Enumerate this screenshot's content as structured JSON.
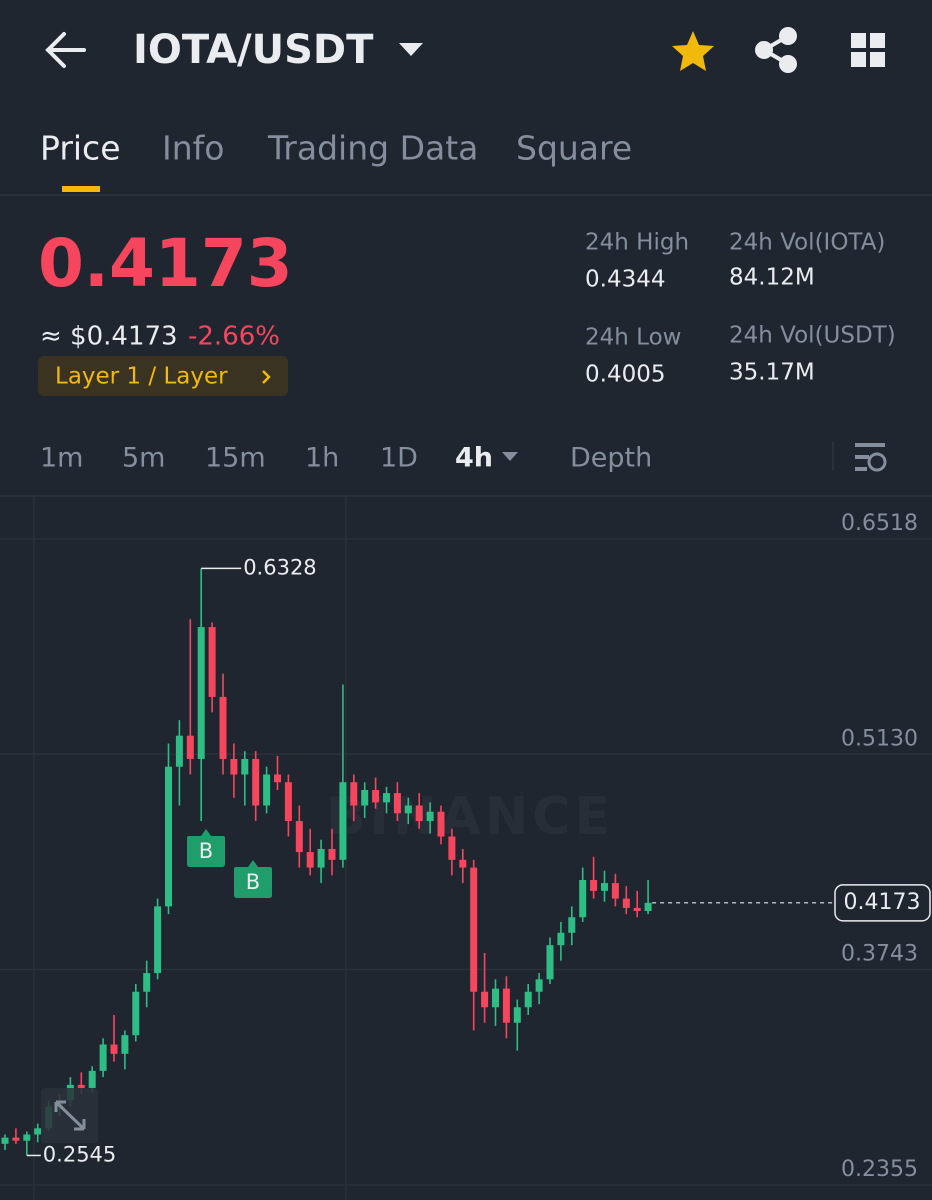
{
  "header": {
    "pair": "IOTA/USDT"
  },
  "tabs": [
    "Price",
    "Info",
    "Trading Data",
    "Square"
  ],
  "ticker": {
    "price": "0.4173",
    "approx": "≈ $0.4173",
    "change": "-2.66%",
    "tag": "Layer 1 / Layer"
  },
  "stats": [
    {
      "label": "24h High",
      "value": "0.4344"
    },
    {
      "label": "24h Vol(IOTA)",
      "value": "84.12M"
    },
    {
      "label": "24h Low",
      "value": "0.4005"
    },
    {
      "label": "24h Vol(USDT)",
      "value": "35.17M"
    }
  ],
  "intervals": [
    "1m",
    "5m",
    "15m",
    "1h",
    "1D",
    "4h"
  ],
  "depth": "Depth",
  "chart_data": {
    "type": "candlestick",
    "watermark": "BINANCE",
    "up_color": "#2ebd85",
    "down_color": "#f6465d",
    "grid": true,
    "ylim": [
      0.2258,
      0.6788
    ],
    "yticks": [
      0.2355,
      0.3743,
      {
        "value": 0.513,
        "label": "0.5130"
      },
      0.6518
    ],
    "high_label": 0.6328,
    "low_label": 0.2545,
    "last_price": 0.4173,
    "markers": [
      "B",
      "B"
    ],
    "open": [
      0.262,
      0.266,
      0.264,
      0.268,
      0.272,
      0.286,
      0.29,
      0.3,
      0.298,
      0.309,
      0.326,
      0.32,
      0.332,
      0.36,
      0.372,
      0.415,
      0.505,
      0.525,
      0.51,
      0.595,
      0.55,
      0.51,
      0.5,
      0.51,
      0.48,
      0.5,
      0.495,
      0.47,
      0.45,
      0.44,
      0.452,
      0.445,
      0.495,
      0.48,
      0.49,
      0.482,
      0.488,
      0.475,
      0.48,
      0.47,
      0.476,
      0.46,
      0.445,
      0.44,
      0.36,
      0.35,
      0.362,
      0.34,
      0.35,
      0.36,
      0.368,
      0.39,
      0.398,
      0.408,
      0.432,
      0.425,
      0.43,
      0.42,
      0.414,
      0.412
    ],
    "high": [
      0.268,
      0.272,
      0.27,
      0.275,
      0.29,
      0.294,
      0.305,
      0.308,
      0.312,
      0.33,
      0.345,
      0.335,
      0.365,
      0.38,
      0.42,
      0.52,
      0.535,
      0.6,
      0.6328,
      0.598,
      0.565,
      0.52,
      0.515,
      0.515,
      0.505,
      0.512,
      0.5,
      0.48,
      0.465,
      0.458,
      0.465,
      0.558,
      0.5,
      0.495,
      0.498,
      0.492,
      0.495,
      0.485,
      0.488,
      0.482,
      0.48,
      0.465,
      0.452,
      0.445,
      0.385,
      0.368,
      0.37,
      0.355,
      0.365,
      0.372,
      0.395,
      0.405,
      0.415,
      0.44,
      0.447,
      0.438,
      0.436,
      0.428,
      0.425,
      0.432
    ],
    "low": [
      0.258,
      0.262,
      0.2545,
      0.263,
      0.27,
      0.28,
      0.286,
      0.294,
      0.295,
      0.305,
      0.315,
      0.31,
      0.328,
      0.35,
      0.368,
      0.41,
      0.48,
      0.5,
      0.47,
      0.54,
      0.5,
      0.485,
      0.48,
      0.47,
      0.475,
      0.49,
      0.46,
      0.44,
      0.435,
      0.43,
      0.435,
      0.44,
      0.47,
      0.472,
      0.478,
      0.475,
      0.47,
      0.468,
      0.465,
      0.462,
      0.455,
      0.435,
      0.43,
      0.335,
      0.34,
      0.338,
      0.33,
      0.322,
      0.345,
      0.352,
      0.365,
      0.38,
      0.39,
      0.405,
      0.42,
      0.418,
      0.415,
      0.41,
      0.408,
      0.41
    ],
    "close": [
      0.266,
      0.264,
      0.268,
      0.272,
      0.286,
      0.29,
      0.3,
      0.298,
      0.309,
      0.326,
      0.32,
      0.332,
      0.36,
      0.372,
      0.415,
      0.505,
      0.525,
      0.51,
      0.595,
      0.55,
      0.51,
      0.5,
      0.51,
      0.48,
      0.5,
      0.495,
      0.47,
      0.45,
      0.44,
      0.452,
      0.445,
      0.495,
      0.48,
      0.49,
      0.482,
      0.488,
      0.475,
      0.48,
      0.47,
      0.476,
      0.46,
      0.445,
      0.44,
      0.36,
      0.35,
      0.362,
      0.34,
      0.35,
      0.36,
      0.368,
      0.39,
      0.398,
      0.408,
      0.432,
      0.425,
      0.43,
      0.42,
      0.414,
      0.412,
      0.4173
    ]
  }
}
